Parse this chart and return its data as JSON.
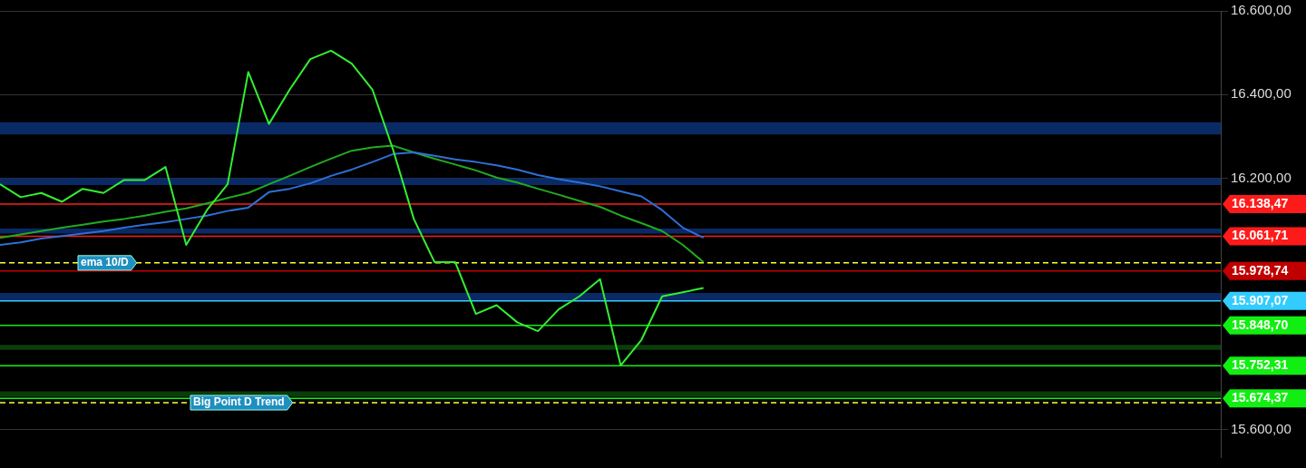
{
  "chart_data": {
    "type": "line",
    "categories": [
      null,
      null,
      null,
      null,
      null,
      null,
      null,
      null,
      null,
      null,
      null,
      null,
      null,
      null,
      null,
      null,
      null,
      null,
      null,
      null,
      null,
      null,
      null,
      null,
      null,
      null,
      null,
      null,
      null,
      null,
      null,
      null,
      null,
      null,
      null,
      null,
      null,
      null,
      null,
      null,
      null,
      null,
      null,
      null,
      null,
      null,
      null,
      null,
      null,
      null,
      null,
      null,
      null,
      null,
      null,
      null,
      null,
      null,
      null,
      null
    ],
    "series": [
      {
        "color": "#33ee33",
        "values": [
          16186,
          16155,
          16165,
          16144,
          16175,
          16165,
          16196,
          16196,
          16227,
          16041,
          16124,
          16186,
          16454,
          16330,
          16412,
          16485,
          16505,
          16474,
          16412,
          16268,
          16103,
          16000,
          16000,
          15876,
          15897,
          15856,
          15835,
          15887,
          15918,
          15959,
          15753,
          15814,
          15918,
          15928,
          15938,
          null,
          null,
          null,
          null,
          null,
          null,
          null,
          null,
          null,
          null,
          null,
          null,
          null,
          null,
          null,
          null,
          null,
          null,
          null,
          null,
          null,
          null,
          null,
          null,
          null
        ]
      },
      {
        "color": "#2f6fd6",
        "values": [
          16041,
          16047,
          16056,
          16062,
          16068,
          16074,
          16082,
          16089,
          16095,
          16103,
          16111,
          16122,
          16130,
          16167,
          16175,
          16188,
          16206,
          16221,
          16239,
          16258,
          16262,
          16254,
          16245,
          16239,
          16231,
          16221,
          16208,
          16198,
          16190,
          16181,
          16169,
          16157,
          16124,
          16082,
          16058,
          null,
          null,
          null,
          null,
          null,
          null,
          null,
          null,
          null,
          null,
          null,
          null,
          null,
          null,
          null,
          null,
          null,
          null,
          null,
          null,
          null,
          null,
          null,
          null,
          null
        ]
      },
      {
        "color": "#22aa22",
        "values": [
          16058,
          16066,
          16074,
          16082,
          16089,
          16097,
          16103,
          16111,
          16120,
          16128,
          16140,
          16153,
          16165,
          16186,
          16206,
          16227,
          16247,
          16266,
          16274,
          16278,
          16262,
          16247,
          16233,
          16219,
          16202,
          16190,
          16175,
          16161,
          16146,
          16132,
          16111,
          16093,
          16074,
          16041,
          16000,
          null,
          null,
          null,
          null,
          null,
          null,
          null,
          null,
          null,
          null,
          null,
          null,
          null,
          null,
          null,
          null,
          null,
          null,
          null,
          null,
          null,
          null,
          null,
          null,
          null
        ]
      }
    ],
    "ylim": [
      15534,
      16600
    ],
    "yticks": [
      {
        "value": 15600,
        "label": "15.600,00"
      },
      {
        "value": 16200,
        "label": "16.200,00"
      },
      {
        "value": 16400,
        "label": "16.400,00"
      },
      {
        "value": 16600,
        "label": "16.600,00"
      }
    ],
    "tick_labels": "y",
    "grid": "y",
    "legend": false,
    "marker": "none",
    "bands": [
      {
        "axis": "y",
        "from": 16305,
        "to": 16334,
        "color": "#0a2a66"
      },
      {
        "axis": "y",
        "from": 16184,
        "to": 16200,
        "color": "#0a2a66"
      },
      {
        "axis": "y",
        "from": 16068,
        "to": 16080,
        "color": "#0a2a66"
      },
      {
        "axis": "y",
        "from": 15908,
        "to": 15926,
        "color": "#0a2a66"
      },
      {
        "axis": "y",
        "from": 15790,
        "to": 15802,
        "color": "#0b3d0b"
      },
      {
        "axis": "y",
        "from": 15678,
        "to": 15691,
        "color": "#0b3d0b"
      }
    ],
    "ref_lines": [
      {
        "axis": "y",
        "value": 16138.47,
        "label": "16.138,47",
        "color": "#ff1a1a",
        "line_style": "solid"
      },
      {
        "axis": "y",
        "value": 16061.71,
        "label": "16.061,71",
        "color": "#ff1a1a",
        "line_style": "solid"
      },
      {
        "axis": "y",
        "value": 15978.74,
        "label": "15.978,74",
        "color": "#c00000",
        "line_style": "solid"
      },
      {
        "axis": "y",
        "value": 15907.07,
        "label": "15.907,07",
        "color": "#33ccff",
        "line_style": "solid"
      },
      {
        "axis": "y",
        "value": 15848.7,
        "label": "15.848,70",
        "color": "#11ee11",
        "line_style": "solid"
      },
      {
        "axis": "y",
        "value": 15752.31,
        "label": "15.752,31",
        "color": "#11ee11",
        "line_style": "solid"
      },
      {
        "axis": "y",
        "value": 15674.37,
        "label": "15.674,37",
        "color": "#11ee11",
        "line_style": "solid"
      },
      {
        "axis": "y",
        "value": 15998,
        "label": "ema 10/D",
        "color": "#ffff33",
        "line_style": "dashed"
      },
      {
        "axis": "y",
        "value": 15664,
        "label": "Big Point D Trend",
        "color": "#ffff33",
        "line_style": "dashed"
      }
    ]
  }
}
